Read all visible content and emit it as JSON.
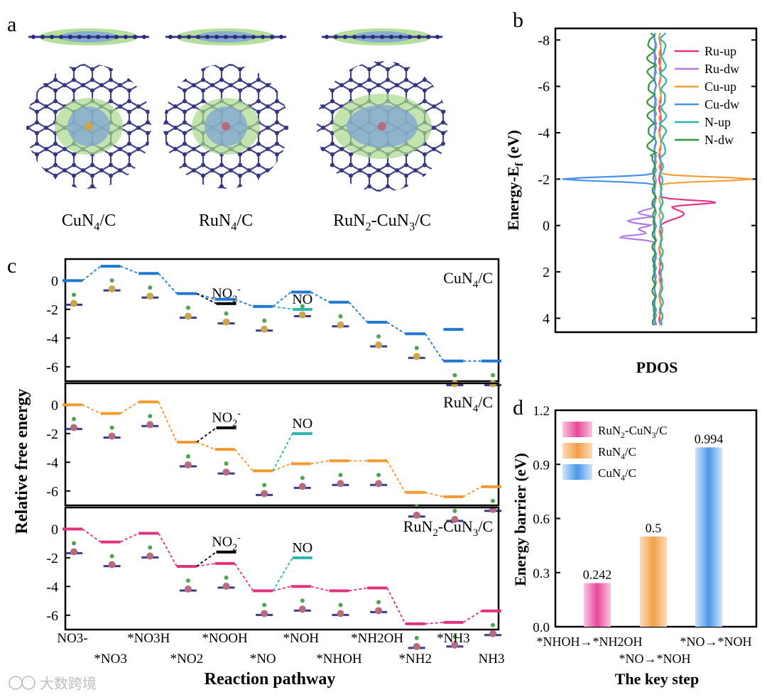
{
  "panel_letters": {
    "a": "a",
    "b": "b",
    "c": "c",
    "d": "d"
  },
  "panel_a": {
    "structures": [
      {
        "label": "CuN",
        "sub": "4",
        "tail": "/C",
        "center_color": "#c9a74a"
      },
      {
        "label": "RuN",
        "sub": "4",
        "tail": "/C",
        "center_color": "#b86a7e"
      },
      {
        "label": "RuN",
        "sub": "2",
        "tail": "-CuN",
        "sub2": "3",
        "tail2": "/C",
        "center_color": "#b86a7e"
      }
    ],
    "colors": {
      "lattice": "#3b3b8c",
      "charge_green": "#a9d98a",
      "charge_blue": "#7fa6d6"
    }
  },
  "chart_data": [
    {
      "panel": "b",
      "type": "line",
      "xlabel": "PDOS",
      "ylabel": "Energy-E",
      "ylabel_sub": "f",
      "ylabel_unit": " (eV)",
      "ylim": [
        -8.5,
        4.6
      ],
      "y_inverted": true,
      "yticks": [
        "-8",
        "-6",
        "-4",
        "-2",
        "0",
        "2",
        "4"
      ],
      "ytick_values": [
        -8,
        -6,
        -4,
        -2,
        0,
        2,
        4
      ],
      "legend_position": "top-right",
      "series": [
        {
          "name": "Ru-up",
          "color": "#e8328a"
        },
        {
          "name": "Ru-dw",
          "color": "#b27ae6"
        },
        {
          "name": "Cu-up",
          "color": "#f2a13a"
        },
        {
          "name": "Cu-dw",
          "color": "#4a92e6"
        },
        {
          "name": "N-up",
          "color": "#2bb5b0"
        },
        {
          "name": "N-dw",
          "color": "#2e9a3a"
        }
      ],
      "peaks": [
        {
          "series": "Cu-up",
          "energy": -2.0,
          "pdos": 1.0
        },
        {
          "series": "Cu-dw",
          "energy": -2.0,
          "pdos": -1.0
        },
        {
          "series": "Ru-up",
          "energy": -1.0,
          "pdos": 0.61
        },
        {
          "series": "Ru-dw",
          "energy": 0.5,
          "pdos": -0.36
        }
      ]
    },
    {
      "panel": "c",
      "type": "line",
      "xlabel": "Reaction pathway",
      "ylabel": "Relative free energy",
      "ylim": [
        -7,
        1.5
      ],
      "yticks": [
        "0",
        "-2",
        "-4",
        "-6"
      ],
      "ytick_values": [
        0,
        -2,
        -4,
        -6
      ],
      "categories_bottom": [
        "NO3-",
        "*NO3H",
        "*NOOH",
        "*NOH",
        "*NH2OH",
        "*NH3"
      ],
      "categories_top": [
        "*NO3",
        "*NO2",
        "*NO",
        "*NHOH",
        "*NH2",
        "NH3"
      ],
      "subplots": [
        {
          "name": "CuN4/C",
          "label": "CuN",
          "sub": "4",
          "tail": "/C",
          "color": "#1e78d2",
          "values": [
            0.0,
            1.0,
            0.5,
            -0.9,
            -1.3,
            -1.8,
            -0.8,
            -1.5,
            -2.9,
            -3.7,
            -5.6,
            -5.6
          ],
          "side_branches": [
            {
              "label": "NO",
              "sup": "2",
              "charge": "-",
              "from_index": 3,
              "value": -1.6,
              "color": "#000000"
            },
            {
              "label": "NO",
              "from_index": 5,
              "value": -2.0,
              "color": "#2bb5b0"
            }
          ],
          "extra_level": {
            "index": 10,
            "value": -3.4
          }
        },
        {
          "name": "RuN4/C",
          "label": "RuN",
          "sub": "4",
          "tail": "/C",
          "color": "#f29a2e",
          "values": [
            0.0,
            -0.6,
            0.2,
            -2.6,
            -3.1,
            -4.6,
            -4.1,
            -3.9,
            -3.9,
            -6.1,
            -6.4,
            -5.7
          ],
          "side_branches": [
            {
              "label": "NO",
              "sup": "2",
              "charge": "-",
              "from_index": 3,
              "value": -1.6,
              "color": "#000000"
            },
            {
              "label": "NO",
              "from_index": 5,
              "value": -2.0,
              "color": "#2bb5b0"
            }
          ]
        },
        {
          "name": "RuN2-CuN3/C",
          "label": "RuN",
          "sub": "2",
          "tail": "-CuN",
          "sub2": "3",
          "tail2": "/C",
          "color": "#e0337f",
          "values": [
            0.0,
            -0.9,
            -0.3,
            -2.6,
            -2.4,
            -4.3,
            -4.0,
            -4.3,
            -4.1,
            -6.6,
            -6.5,
            -5.7
          ],
          "side_branches": [
            {
              "label": "NO",
              "sup": "2",
              "charge": "-",
              "from_index": 3,
              "value": -1.6,
              "color": "#000000"
            },
            {
              "label": "NO",
              "from_index": 5,
              "value": -2.0,
              "color": "#2bb5b0"
            }
          ]
        }
      ]
    },
    {
      "panel": "d",
      "type": "bar",
      "xlabel": "The key step",
      "ylabel": "Energy barrier (eV)",
      "ylim": [
        0.0,
        1.2
      ],
      "yticks": [
        "0.0",
        "0.3",
        "0.6",
        "0.9",
        "1.2"
      ],
      "ytick_values": [
        0.0,
        0.3,
        0.6,
        0.9,
        1.2
      ],
      "categories": [
        "*NHOH→*NH2OH",
        "*NO→*NOH",
        "*NO→*NOH"
      ],
      "values": [
        0.242,
        0.5,
        0.994
      ],
      "value_labels": [
        "0.242",
        "0.5",
        "0.994"
      ],
      "legend_position": "top-left",
      "series": [
        {
          "name": "RuN2-CuN3/C",
          "label": "RuN",
          "sub": "2",
          "tail": "-CuN",
          "sub2": "3",
          "tail2": "/C",
          "color": "#e8489a",
          "light": "#f8c6df"
        },
        {
          "name": "RuN4/C",
          "label": "RuN",
          "sub": "4",
          "tail": "/C",
          "color": "#f2a04a",
          "light": "#fbdcb8"
        },
        {
          "name": "CuN4/C",
          "label": "CuN",
          "sub": "4",
          "tail": "/C",
          "color": "#4a98e8",
          "light": "#cfe4fb"
        }
      ]
    }
  ],
  "watermark": {
    "text": "大数跨境"
  }
}
